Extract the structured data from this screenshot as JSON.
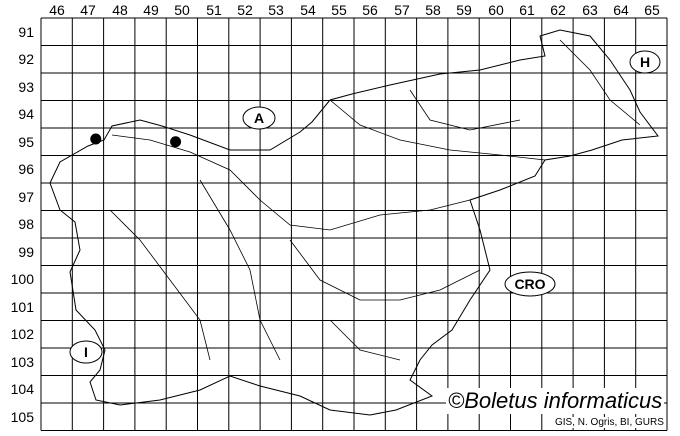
{
  "map": {
    "column_labels": [
      "46",
      "47",
      "48",
      "49",
      "50",
      "51",
      "52",
      "53",
      "54",
      "55",
      "56",
      "57",
      "58",
      "59",
      "60",
      "61",
      "62",
      "63",
      "64",
      "65"
    ],
    "row_labels": [
      "91",
      "92",
      "93",
      "94",
      "95",
      "96",
      "97",
      "98",
      "99",
      "100",
      "101",
      "102",
      "103",
      "104",
      "105"
    ],
    "country_labels": [
      "A",
      "H",
      "CRO",
      "I"
    ],
    "occurrence_records": [
      {
        "column": "47",
        "row": "95"
      },
      {
        "column": "50",
        "row": "95"
      }
    ],
    "colors": {
      "line": "#000000",
      "background": "#ffffff",
      "dot": "#000000"
    }
  },
  "credit": "©Boletus informaticus",
  "source": "GIS, N. Ogris, BI, GURS"
}
